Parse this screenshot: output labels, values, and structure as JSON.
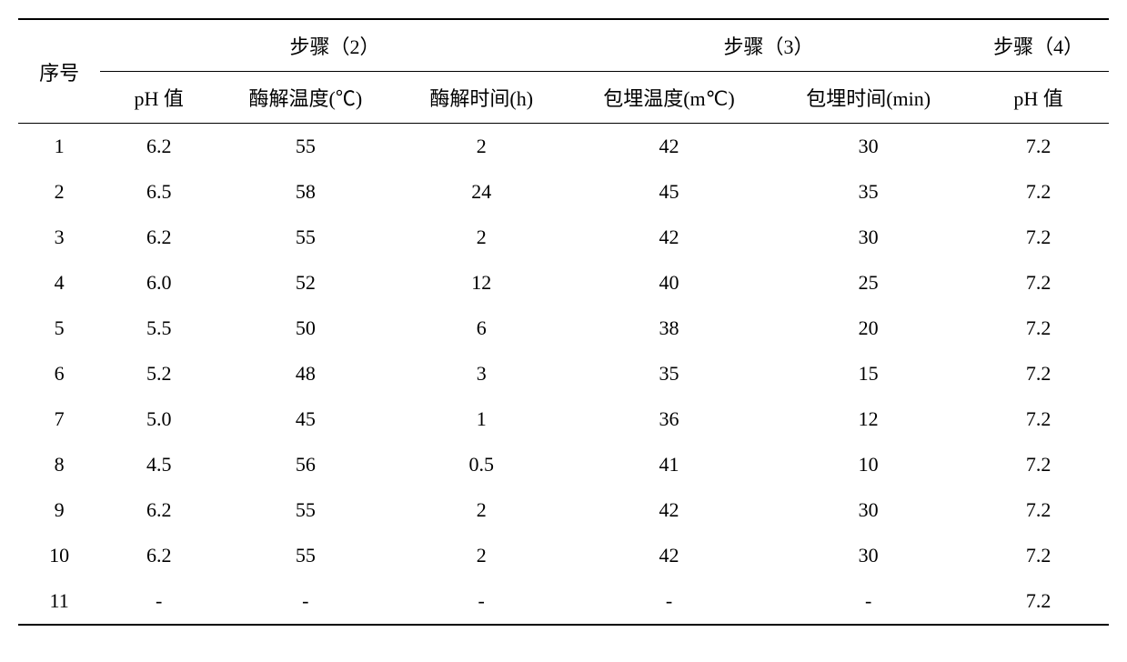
{
  "table": {
    "type": "table",
    "background_color": "#ffffff",
    "text_color": "#000000",
    "border_color": "#000000",
    "font_size": 22,
    "headers": {
      "seq": "序号",
      "step2": "步骤（2）",
      "step3": "步骤（3）",
      "step4": "步骤（4）",
      "sub": {
        "ph1": "pH 值",
        "temp1": "酶解温度(℃)",
        "time1": "酶解时间(h)",
        "temp2": "包埋温度(m℃)",
        "time2": "包埋时间(min)",
        "ph2": "pH 值"
      }
    },
    "rows": [
      {
        "seq": "1",
        "ph1": "6.2",
        "temp1": "55",
        "time1": "2",
        "temp2": "42",
        "time2": "30",
        "ph2": "7.2"
      },
      {
        "seq": "2",
        "ph1": "6.5",
        "temp1": "58",
        "time1": "24",
        "temp2": "45",
        "time2": "35",
        "ph2": "7.2"
      },
      {
        "seq": "3",
        "ph1": "6.2",
        "temp1": "55",
        "time1": "2",
        "temp2": "42",
        "time2": "30",
        "ph2": "7.2"
      },
      {
        "seq": "4",
        "ph1": "6.0",
        "temp1": "52",
        "time1": "12",
        "temp2": "40",
        "time2": "25",
        "ph2": "7.2"
      },
      {
        "seq": "5",
        "ph1": "5.5",
        "temp1": "50",
        "time1": "6",
        "temp2": "38",
        "time2": "20",
        "ph2": "7.2"
      },
      {
        "seq": "6",
        "ph1": "5.2",
        "temp1": "48",
        "time1": "3",
        "temp2": "35",
        "time2": "15",
        "ph2": "7.2"
      },
      {
        "seq": "7",
        "ph1": "5.0",
        "temp1": "45",
        "time1": "1",
        "temp2": "36",
        "time2": "12",
        "ph2": "7.2"
      },
      {
        "seq": "8",
        "ph1": "4.5",
        "temp1": "56",
        "time1": "0.5",
        "temp2": "41",
        "time2": "10",
        "ph2": "7.2"
      },
      {
        "seq": "9",
        "ph1": "6.2",
        "temp1": "55",
        "time1": "2",
        "temp2": "42",
        "time2": "30",
        "ph2": "7.2"
      },
      {
        "seq": "10",
        "ph1": "6.2",
        "temp1": "55",
        "time1": "2",
        "temp2": "42",
        "time2": "30",
        "ph2": "7.2"
      },
      {
        "seq": "11",
        "ph1": "-",
        "temp1": "-",
        "time1": "-",
        "temp2": "-",
        "time2": "-",
        "ph2": "7.2"
      }
    ]
  }
}
